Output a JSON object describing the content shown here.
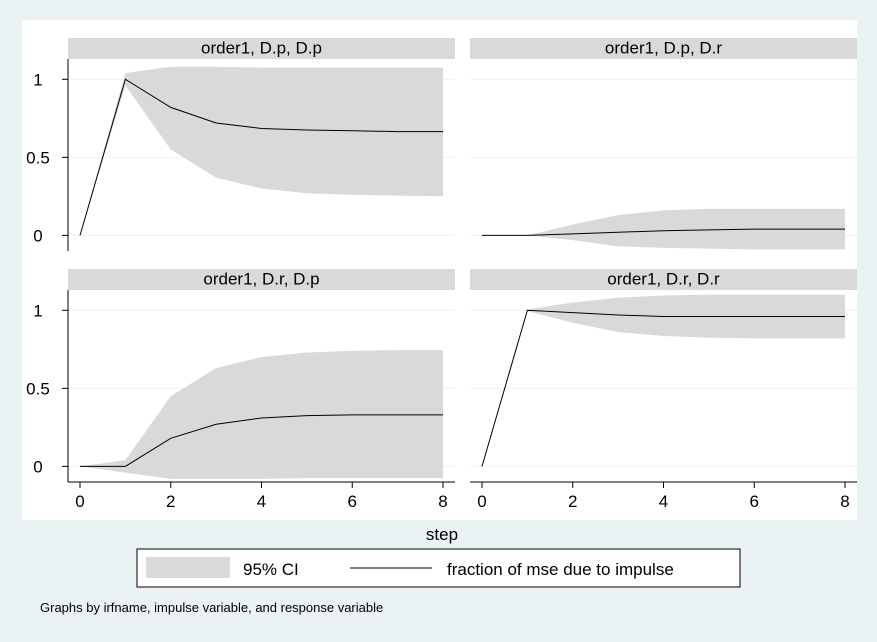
{
  "chart_data": {
    "type": "area",
    "layout": "2x2 facet grid",
    "x": [
      0,
      1,
      2,
      3,
      4,
      5,
      6,
      7,
      8
    ],
    "xlabel": "step",
    "xlim": [
      0,
      8
    ],
    "xticks": [
      0,
      2,
      4,
      6,
      8
    ],
    "yticks": [
      0,
      0.5,
      1
    ],
    "ytick_labels": [
      "0",
      "0.5",
      "1"
    ],
    "ylim": [
      -0.1,
      1.13
    ],
    "grid": true,
    "legend": {
      "position": "bottom",
      "entries": [
        {
          "label": "95% CI",
          "kind": "band",
          "color": "#d9d9d9"
        },
        {
          "label": "fraction of mse due to impulse",
          "kind": "line",
          "color": "#000000"
        }
      ]
    },
    "note": "Graphs by irfname, impulse variable, and response variable",
    "panels": [
      {
        "title": "order1, D.p, D.p",
        "line": [
          0,
          1,
          0.82,
          0.72,
          0.685,
          0.675,
          0.67,
          0.665,
          0.665
        ],
        "lower": [
          0,
          0.96,
          0.55,
          0.37,
          0.3,
          0.27,
          0.26,
          0.255,
          0.25
        ],
        "upper": [
          0,
          1.04,
          1.08,
          1.08,
          1.075,
          1.075,
          1.075,
          1.075,
          1.075
        ]
      },
      {
        "title": "order1, D.p, D.r",
        "line": [
          0,
          0,
          0.01,
          0.02,
          0.03,
          0.035,
          0.04,
          0.04,
          0.04
        ],
        "lower": [
          0,
          0,
          -0.03,
          -0.07,
          -0.08,
          -0.085,
          -0.09,
          -0.09,
          -0.09
        ],
        "upper": [
          0,
          0,
          0.07,
          0.13,
          0.16,
          0.17,
          0.17,
          0.17,
          0.17
        ]
      },
      {
        "title": "order1, D.r, D.p",
        "line": [
          0,
          0,
          0.18,
          0.27,
          0.31,
          0.325,
          0.33,
          0.33,
          0.33
        ],
        "lower": [
          0,
          -0.04,
          -0.08,
          -0.08,
          -0.08,
          -0.075,
          -0.075,
          -0.075,
          -0.075
        ],
        "upper": [
          0,
          0.04,
          0.45,
          0.63,
          0.7,
          0.73,
          0.74,
          0.745,
          0.745
        ]
      },
      {
        "title": "order1, D.r, D.r",
        "line": [
          0,
          1,
          0.985,
          0.97,
          0.96,
          0.96,
          0.96,
          0.96,
          0.96
        ],
        "lower": [
          0,
          0.995,
          0.92,
          0.86,
          0.835,
          0.825,
          0.82,
          0.82,
          0.82
        ],
        "upper": [
          0,
          1.005,
          1.05,
          1.08,
          1.095,
          1.1,
          1.1,
          1.1,
          1.1
        ]
      }
    ]
  }
}
